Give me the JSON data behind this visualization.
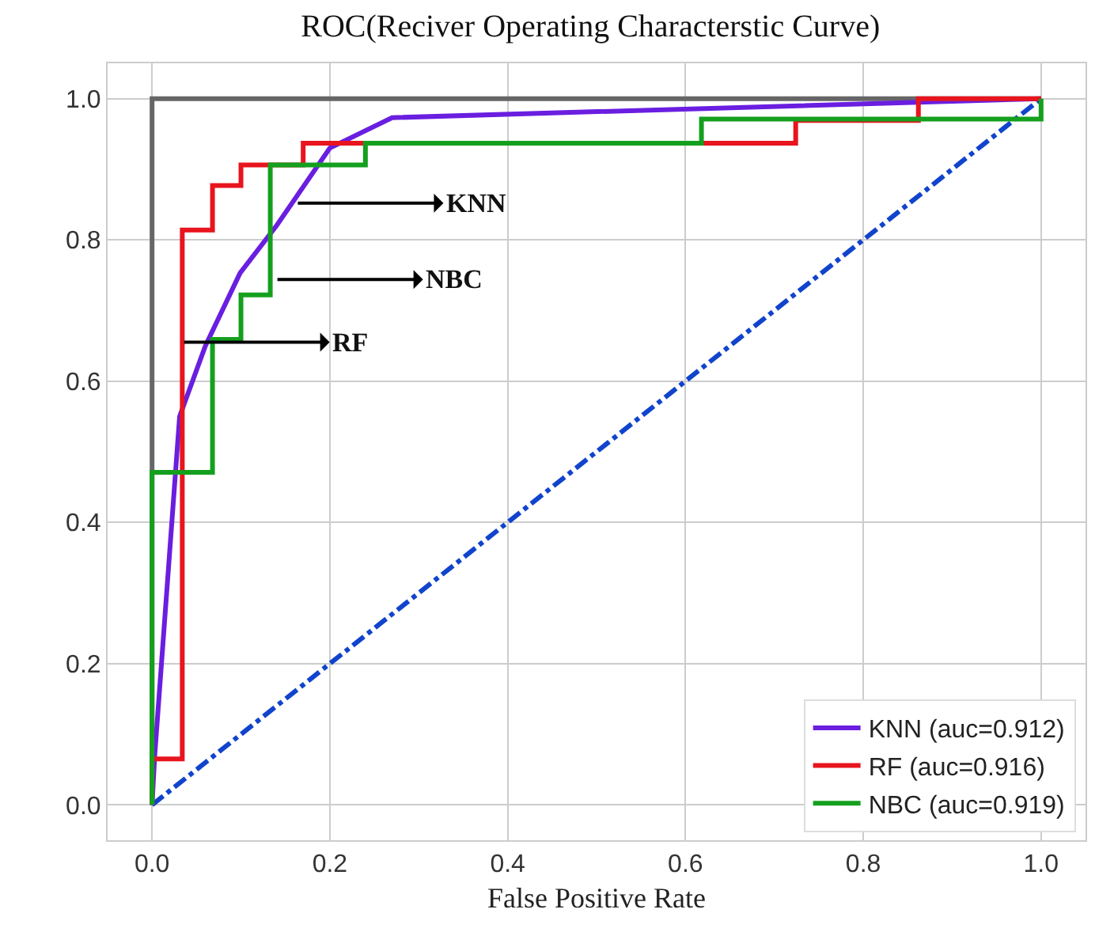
{
  "chart_data": {
    "type": "line",
    "title": "ROC(Reciver Operating Characterstic Curve)",
    "xlabel": "False Positive Rate",
    "xlim": [
      -0.05,
      1.05
    ],
    "ylim": [
      -0.05,
      1.05
    ],
    "xticks": [
      {
        "value": 0,
        "label": "0.0"
      },
      0.2,
      0.4,
      0.6,
      0.8,
      {
        "value": 1,
        "label": "1.0"
      }
    ],
    "yticks": [
      {
        "value": 0,
        "label": "0.0"
      },
      0.2,
      0.4,
      0.6,
      0.8,
      {
        "value": 1,
        "label": "1.0"
      }
    ],
    "grid": true,
    "legend": "bottom right",
    "marker": "none",
    "series": [
      {
        "color": "#666666",
        "x": [
          0,
          0,
          1
        ],
        "values": [
          0,
          1,
          1
        ],
        "line_style": "solid"
      },
      {
        "color": "#1144cc",
        "x": [
          0,
          1
        ],
        "values": [
          0,
          1
        ],
        "line_style": "dashed"
      },
      {
        "name": "KNN (auc=0.912)",
        "color": "#6a1ee0",
        "x": [
          0,
          0.003,
          0.031,
          0.06,
          0.099,
          0.14,
          0.2,
          0.27,
          1
        ],
        "values": [
          0,
          0.07,
          0.55,
          0.65,
          0.753,
          0.82,
          0.93,
          0.973,
          1
        ],
        "line_style": "solid"
      },
      {
        "name": "RF (auc=0.916)",
        "color": "#e8141e",
        "x": [
          0,
          0,
          0.034,
          0.034,
          0.068,
          0.068,
          0.1,
          0.1,
          0.17,
          0.17,
          0.724,
          0.724,
          0.862,
          0.862,
          1
        ],
        "values": [
          0,
          0.065,
          0.065,
          0.814,
          0.814,
          0.877,
          0.877,
          0.906,
          0.906,
          0.937,
          0.937,
          0.969,
          0.969,
          1,
          1
        ],
        "line_style": "solid"
      },
      {
        "name": "NBC (auc=0.919)",
        "color": "#14a01e",
        "x": [
          0,
          0,
          0.068,
          0.068,
          0.1,
          0.1,
          0.133,
          0.133,
          0.24,
          0.24,
          0.618,
          0.618,
          1,
          1
        ],
        "values": [
          0,
          0.471,
          0.471,
          0.659,
          0.659,
          0.722,
          0.722,
          0.906,
          0.906,
          0.937,
          0.937,
          0.971,
          0.971,
          1
        ],
        "line_style": "solid"
      }
    ],
    "annotations": [
      {
        "text": "KNN",
        "x": 0.164,
        "y": 0.852
      },
      {
        "text": "NBC",
        "x": 0.141,
        "y": 0.744
      },
      {
        "text": "RF",
        "x": 0.036,
        "y": 0.655
      }
    ]
  }
}
